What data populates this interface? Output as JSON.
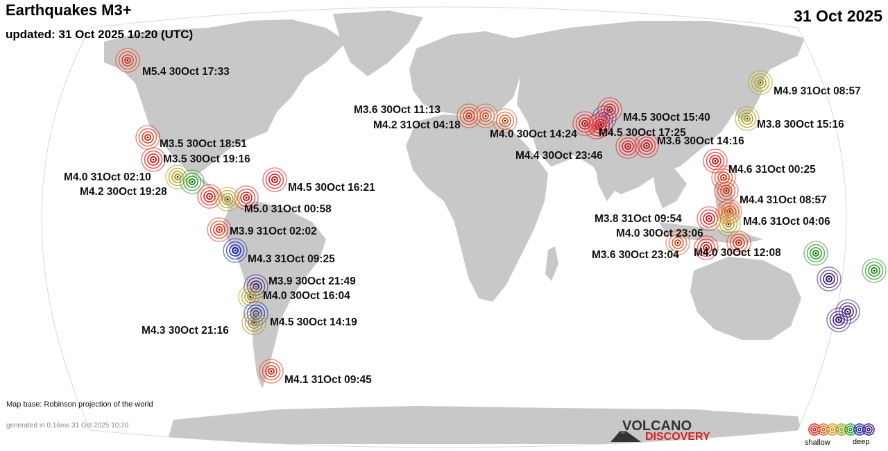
{
  "header": {
    "title": "Earthquakes M3+",
    "updated": "updated: 31 Oct 2025 10:20 (UTC)",
    "date": "31 Oct 2025"
  },
  "footer": {
    "map_base": "Map base: Robinson projection of the world",
    "generated": "generated in 0.16ms 31 Oct 2025 10:20"
  },
  "logo": {
    "line1": "VOLCANO",
    "line2": "DISCOVERY"
  },
  "legend": {
    "shallow": "shallow",
    "deep": "deep",
    "colors": [
      "#e02020",
      "#e06030",
      "#d0a030",
      "#a0a020",
      "#30a030",
      "#2030c0",
      "#402080"
    ]
  },
  "map": {
    "land_color": "#c8c8c8",
    "ocean_color": "#ffffff",
    "outline_color": "#d8d8d8"
  },
  "quakes": [
    {
      "label": "M5.4 30Oct 17:33",
      "color": "#e04020"
    },
    {
      "label": "M3.5 30Oct 18:51",
      "color": "#e04020"
    },
    {
      "label": "M3.5 30Oct 19:16",
      "color": "#e02020"
    },
    {
      "label": "M4.0 31Oct 02:10",
      "color": "#b0a020"
    },
    {
      "label": "M4.2 30Oct 19:28",
      "color": "#30a030"
    },
    {
      "label": "M4.5 30Oct 16:21",
      "color": "#e02020"
    },
    {
      "label": "M5.0 31Oct 00:58",
      "color": "#b0a020"
    },
    {
      "label": "M3.9 31Oct 02:02",
      "color": "#e04020"
    },
    {
      "label": "M4.3 31Oct 09:25",
      "color": "#2030c0"
    },
    {
      "label": "M3.9 30Oct 21:49",
      "color": "#402080"
    },
    {
      "label": "M4.0 30Oct 16:04",
      "color": "#b0a020"
    },
    {
      "label": "M4.5 30Oct 14:19",
      "color": "#2030c0"
    },
    {
      "label": "M4.3 30Oct 21:16",
      "color": "#a09020"
    },
    {
      "label": "M4.1 31Oct 09:45",
      "color": "#e04020"
    },
    {
      "label": "M3.6 30Oct 11:13",
      "color": "#e04020"
    },
    {
      "label": "M4.2 31Oct 04:18",
      "color": "#e06030"
    },
    {
      "label": "M4.0 30Oct 14:24",
      "color": "#e02020"
    },
    {
      "label": "M4.5 30Oct 15:40",
      "color": "#e02020"
    },
    {
      "label": "M4.5 30Oct 17:25",
      "color": "#e02020"
    },
    {
      "label": "M4.4 30Oct 23:46",
      "color": "#e02020"
    },
    {
      "label": "M3.6 30Oct 14:16",
      "color": "#e02020"
    },
    {
      "label": "M4.9 31Oct 08:57",
      "color": "#b0a020"
    },
    {
      "label": "M3.8 30Oct 15:16",
      "color": "#b0a020"
    },
    {
      "label": "M4.6 31Oct 00:25",
      "color": "#e02020"
    },
    {
      "label": "M4.4 31Oct 08:57",
      "color": "#e04020"
    },
    {
      "label": "M4.6 31Oct 04:06",
      "color": "#e06030"
    },
    {
      "label": "M3.8 31Oct 09:54",
      "color": "#e02020"
    },
    {
      "label": "M4.0 30Oct 23:06",
      "color": "#b0a020"
    },
    {
      "label": "M3.6 30Oct 23:04",
      "color": "#e06030"
    },
    {
      "label": "M4.0 30Oct 12:08",
      "color": "#e02020"
    }
  ],
  "unlabeled_quakes": [
    {
      "color": "#e06030"
    },
    {
      "color": "#e02020"
    },
    {
      "color": "#e02020"
    },
    {
      "color": "#2030c0"
    },
    {
      "color": "#e02020"
    },
    {
      "color": "#e04020"
    },
    {
      "color": "#e06030"
    },
    {
      "color": "#e04020"
    },
    {
      "color": "#30a030"
    },
    {
      "color": "#30a030"
    },
    {
      "color": "#402080"
    },
    {
      "color": "#402080"
    },
    {
      "color": "#402080"
    }
  ]
}
